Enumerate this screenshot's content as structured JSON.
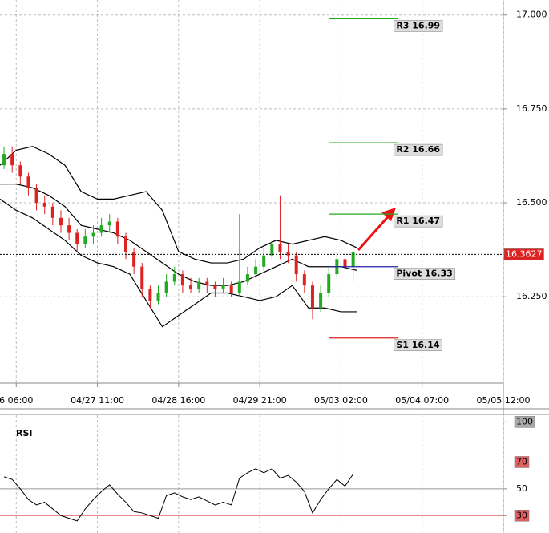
{
  "chart_data": [
    {
      "type": "candlestick",
      "xlim": [
        -4,
        120
      ],
      "ylim": [
        16.02,
        17.04
      ],
      "xticks": [
        {
          "value": 0,
          "label": "6 06:00"
        },
        {
          "value": 20,
          "label": "04/27 11:00"
        },
        {
          "value": 40,
          "label": "04/28 16:00"
        },
        {
          "value": 60,
          "label": "04/29 21:00"
        },
        {
          "value": 80,
          "label": "05/03 02:00"
        },
        {
          "value": 100,
          "label": "05/04 07:00"
        },
        {
          "value": 120,
          "label": "05/05 12:00"
        }
      ],
      "yticks": [
        {
          "value": 17,
          "label": "17.000"
        },
        {
          "value": 16.75,
          "label": "16.750"
        },
        {
          "value": 16.5,
          "label": "16.500"
        },
        {
          "value": 16.25,
          "label": "16.250"
        }
      ],
      "grid": true,
      "up_color": "#22aa22",
      "down_color": "#dd2222",
      "ohlc": {
        "x": [
          -3,
          -1,
          1,
          3,
          5,
          7,
          9,
          11,
          13,
          15,
          17,
          19,
          21,
          23,
          25,
          27,
          29,
          31,
          33,
          35,
          37,
          39,
          41,
          43,
          45,
          47,
          49,
          51,
          53,
          55,
          57,
          59,
          61,
          63,
          65,
          67,
          69,
          71,
          73,
          75,
          77,
          79,
          81,
          83
        ],
        "open": [
          16.6,
          16.63,
          16.6,
          16.57,
          16.54,
          16.5,
          16.49,
          16.46,
          16.44,
          16.42,
          16.39,
          16.41,
          16.42,
          16.44,
          16.45,
          16.41,
          16.37,
          16.33,
          16.27,
          16.24,
          16.26,
          16.29,
          16.31,
          16.28,
          16.27,
          16.29,
          16.28,
          16.27,
          16.28,
          16.26,
          16.29,
          16.31,
          16.33,
          16.36,
          16.39,
          16.37,
          16.36,
          16.31,
          16.28,
          16.22,
          16.26,
          16.31,
          16.35,
          16.33
        ],
        "high": [
          16.65,
          16.65,
          16.61,
          16.58,
          16.55,
          16.52,
          16.5,
          16.48,
          16.46,
          16.43,
          16.43,
          16.44,
          16.46,
          16.47,
          16.46,
          16.42,
          16.38,
          16.34,
          16.28,
          16.28,
          16.31,
          16.33,
          16.32,
          16.3,
          16.3,
          16.3,
          16.29,
          16.3,
          16.29,
          16.47,
          16.33,
          16.35,
          16.38,
          16.4,
          16.52,
          16.39,
          16.37,
          16.32,
          16.29,
          16.28,
          16.33,
          16.37,
          16.42,
          16.4
        ],
        "low": [
          16.59,
          16.58,
          16.55,
          16.52,
          16.48,
          16.47,
          16.44,
          16.42,
          16.4,
          16.37,
          16.38,
          16.39,
          16.41,
          16.42,
          16.39,
          16.35,
          16.31,
          16.25,
          16.22,
          16.23,
          16.25,
          16.28,
          16.26,
          16.26,
          16.26,
          16.26,
          16.25,
          16.26,
          16.25,
          16.25,
          16.28,
          16.3,
          16.32,
          16.35,
          16.35,
          16.34,
          16.29,
          16.26,
          16.19,
          16.21,
          16.25,
          16.3,
          16.31,
          16.29
        ],
        "close": [
          16.63,
          16.6,
          16.57,
          16.54,
          16.5,
          16.49,
          16.46,
          16.44,
          16.42,
          16.39,
          16.41,
          16.42,
          16.44,
          16.45,
          16.41,
          16.37,
          16.33,
          16.27,
          16.24,
          16.26,
          16.29,
          16.31,
          16.28,
          16.27,
          16.29,
          16.28,
          16.27,
          16.28,
          16.26,
          16.29,
          16.31,
          16.33,
          16.36,
          16.39,
          16.37,
          16.36,
          16.31,
          16.28,
          16.22,
          16.26,
          16.31,
          16.35,
          16.33,
          16.37
        ]
      },
      "bands": {
        "color": "#000000",
        "x": [
          -4,
          0,
          4,
          8,
          12,
          16,
          20,
          24,
          28,
          32,
          36,
          40,
          44,
          48,
          52,
          56,
          60,
          64,
          68,
          72,
          76,
          80,
          84
        ],
        "upper": [
          16.6,
          16.64,
          16.65,
          16.63,
          16.6,
          16.53,
          16.51,
          16.51,
          16.52,
          16.53,
          16.48,
          16.37,
          16.35,
          16.34,
          16.34,
          16.35,
          16.38,
          16.4,
          16.39,
          16.4,
          16.41,
          16.4,
          16.38
        ],
        "middle": [
          16.55,
          16.55,
          16.54,
          16.52,
          16.49,
          16.44,
          16.43,
          16.42,
          16.4,
          16.37,
          16.34,
          16.31,
          16.29,
          16.28,
          16.28,
          16.29,
          16.31,
          16.33,
          16.35,
          16.33,
          16.33,
          16.33,
          16.32
        ],
        "lower": [
          16.51,
          16.48,
          16.46,
          16.43,
          16.4,
          16.36,
          16.34,
          16.33,
          16.31,
          16.24,
          16.17,
          16.2,
          16.23,
          16.26,
          16.26,
          16.25,
          16.24,
          16.25,
          16.28,
          16.22,
          16.22,
          16.21,
          16.21
        ]
      },
      "levels": [
        {
          "value": 16.99,
          "label": "R3 16.99",
          "color": "#22aa22"
        },
        {
          "value": 16.66,
          "label": "R2 16.66",
          "color": "#22aa22"
        },
        {
          "value": 16.47,
          "label": "R1 16.47",
          "color": "#22aa22"
        },
        {
          "value": 16.33,
          "label": "Pivot 16.33",
          "color": "#2222aa"
        },
        {
          "value": 16.14,
          "label": "S1 16.14",
          "color": "#dd2222"
        }
      ],
      "last_price": 16.3627,
      "last_price_color": "#dd2222"
    },
    {
      "type": "line",
      "title": "RSI",
      "ylim": [
        17,
        105
      ],
      "yticks": [
        100,
        70,
        50,
        30
      ],
      "levels": [
        {
          "value": 70,
          "color": "#e06060"
        },
        {
          "value": 50,
          "color": "#999999"
        },
        {
          "value": 30,
          "color": "#e06060"
        }
      ],
      "color": "#000000",
      "x": [
        -3,
        -1,
        1,
        3,
        5,
        7,
        9,
        11,
        13,
        15,
        17,
        19,
        21,
        23,
        25,
        27,
        29,
        31,
        33,
        35,
        37,
        39,
        41,
        43,
        45,
        47,
        49,
        51,
        53,
        55,
        57,
        59,
        61,
        63,
        65,
        67,
        69,
        71,
        73,
        75,
        77,
        79,
        81,
        83
      ],
      "values": [
        59,
        57,
        50,
        42,
        38,
        40,
        35,
        30,
        28,
        26,
        35,
        42,
        48,
        53,
        46,
        40,
        33,
        32,
        30,
        28,
        45,
        47,
        44,
        42,
        44,
        41,
        38,
        40,
        38,
        58,
        62,
        65,
        62,
        65,
        58,
        60,
        55,
        48,
        32,
        42,
        50,
        57,
        52,
        61
      ]
    }
  ]
}
